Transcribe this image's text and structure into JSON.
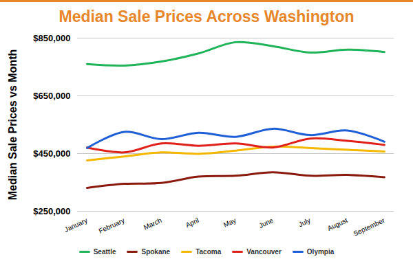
{
  "chart_data": {
    "type": "line",
    "title": "Median Sale Prices Across Washington",
    "y_label": "Median Sale Prices vs Month",
    "categories": [
      "January",
      "February",
      "March",
      "April",
      "May",
      "June",
      "July",
      "August",
      "September"
    ],
    "series": [
      {
        "name": "Seattle",
        "color": "#1fb35a",
        "values": [
          760000,
          755000,
          769000,
          797000,
          836000,
          822000,
          800000,
          810000,
          802000
        ]
      },
      {
        "name": "Spokane",
        "color": "#8b1a0e",
        "values": [
          331000,
          345000,
          348000,
          370000,
          373000,
          385000,
          373000,
          376000,
          368000
        ]
      },
      {
        "name": "Tacoma",
        "color": "#f5b800",
        "values": [
          426000,
          440000,
          454000,
          449000,
          460000,
          474000,
          469000,
          463000,
          457000
        ]
      },
      {
        "name": "Vancouver",
        "color": "#e0201b",
        "values": [
          471000,
          454000,
          485000,
          477000,
          485000,
          471000,
          502000,
          494000,
          480000
        ]
      },
      {
        "name": "Olympia",
        "color": "#1f5fd6",
        "values": [
          469000,
          525000,
          500000,
          522000,
          508000,
          536000,
          514000,
          530000,
          491000
        ]
      }
    ],
    "ylim": [
      250000,
      850000
    ],
    "yticks": [
      {
        "value": 250000,
        "label": "$250,000"
      },
      {
        "value": 450000,
        "label": "$450,000"
      },
      {
        "value": 650000,
        "label": "$650,000"
      },
      {
        "value": 850000,
        "label": "$850,000"
      }
    ],
    "grid": true,
    "legend": "bottom"
  }
}
